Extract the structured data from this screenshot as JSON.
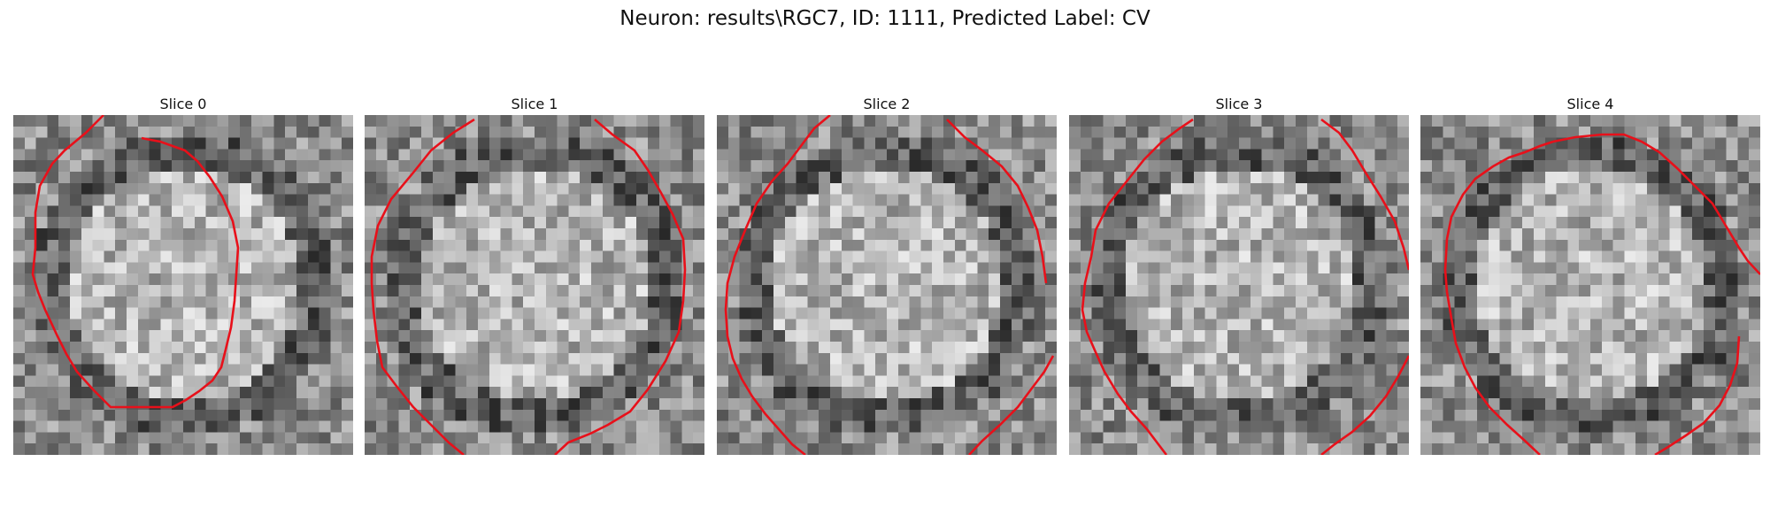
{
  "figure": {
    "title": "Neuron: results\\RGC7, ID: 1111, Predicted Label: CV"
  },
  "panels": [
    {
      "title": "Slice 0",
      "seed": 11,
      "contour_color": "#e8101a"
    },
    {
      "title": "Slice 1",
      "seed": 23,
      "contour_color": "#e8101a"
    },
    {
      "title": "Slice 2",
      "seed": 37,
      "contour_color": "#e8101a"
    },
    {
      "title": "Slice 3",
      "seed": 53,
      "contour_color": "#e8101a"
    },
    {
      "title": "Slice 4",
      "seed": 71,
      "contour_color": "#e8101a"
    }
  ],
  "image": {
    "colormap": "grayscale",
    "grid_size": 30
  }
}
